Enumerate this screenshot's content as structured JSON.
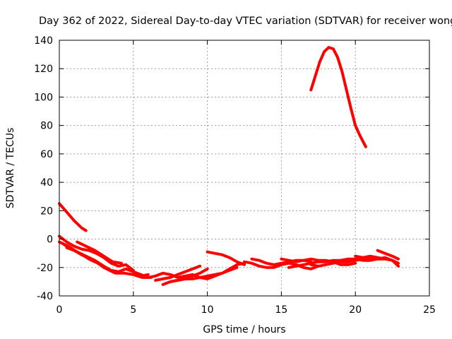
{
  "chart_data": {
    "type": "line",
    "title": "Day 362 of 2022, Sidereal Day-to-day VTEC variation (SDTVAR) for receiver wong",
    "xlabel": "GPS time / hours",
    "ylabel": "SDTVAR / TECUs",
    "xlim": [
      0,
      25
    ],
    "ylim": [
      -40,
      140
    ],
    "xticks": [
      0,
      5,
      10,
      15,
      20,
      25
    ],
    "yticks": [
      -40,
      -20,
      0,
      20,
      40,
      60,
      80,
      100,
      120,
      140
    ],
    "grid": true,
    "color": "#ff0000",
    "series": [
      {
        "name": "s1",
        "x": [
          0.0,
          0.5,
          1.0,
          1.5,
          1.8
        ],
        "y": [
          25,
          19,
          13,
          8,
          6
        ]
      },
      {
        "name": "s2",
        "x": [
          0.0,
          0.5,
          1.0,
          1.5,
          2.0,
          2.5,
          3.0,
          3.5,
          4.0,
          4.5,
          5.0
        ],
        "y": [
          2,
          -2,
          -5,
          -7,
          -8,
          -10,
          -13,
          -17,
          -19,
          -18,
          -22
        ]
      },
      {
        "name": "s3",
        "x": [
          0.0,
          0.6,
          1.2,
          1.8,
          2.4,
          3.0,
          3.5,
          4.0,
          4.5,
          5.0,
          5.5,
          6.0
        ],
        "y": [
          -2,
          -5,
          -9,
          -12,
          -15,
          -19,
          -22,
          -23,
          -21,
          -23,
          -26,
          -25
        ]
      },
      {
        "name": "s4",
        "x": [
          0.2,
          0.8,
          1.4,
          2.0,
          2.6,
          3.2,
          3.8,
          4.4,
          5.0,
          5.6,
          6.2
        ],
        "y": [
          -3,
          -7,
          -10,
          -14,
          -17,
          -21,
          -24,
          -24,
          -25,
          -27,
          -27
        ]
      },
      {
        "name": "s5",
        "x": [
          0.5,
          1.0,
          1.5,
          2.0,
          2.5,
          3.0,
          3.5,
          4.0
        ],
        "y": [
          -6,
          -8,
          -11,
          -13,
          -16,
          -20,
          -22,
          -23
        ]
      },
      {
        "name": "s6",
        "x": [
          1.2,
          1.8,
          2.4,
          3.0,
          3.6,
          4.2
        ],
        "y": [
          -2,
          -5,
          -8,
          -12,
          -16,
          -17
        ]
      },
      {
        "name": "s7",
        "x": [
          5.0,
          5.5,
          6.0,
          6.5,
          7.0,
          7.5,
          8.0,
          8.5,
          9.0,
          9.5,
          10.0,
          10.5,
          11.0,
          11.5,
          12.0
        ],
        "y": [
          -23,
          -25,
          -27,
          -26,
          -24,
          -25,
          -27,
          -26,
          -25,
          -27,
          -26,
          -25,
          -24,
          -22,
          -20
        ]
      },
      {
        "name": "s8",
        "x": [
          7.0,
          7.5,
          8.0,
          8.5,
          9.0,
          9.5,
          10.0
        ],
        "y": [
          -32,
          -30,
          -29,
          -28,
          -26,
          -24,
          -21
        ]
      },
      {
        "name": "s9",
        "x": [
          6.5,
          7.0,
          7.5,
          8.0,
          8.5,
          9.0,
          9.5
        ],
        "y": [
          -29,
          -28,
          -27,
          -25,
          -23,
          -21,
          -19
        ]
      },
      {
        "name": "s10",
        "x": [
          7.5,
          8.0,
          8.5,
          9.0,
          9.5,
          10.0,
          10.5,
          11.0,
          11.5,
          12.0,
          12.5
        ],
        "y": [
          -30,
          -29,
          -28,
          -28,
          -27,
          -28,
          -26,
          -24,
          -21,
          -18,
          -17
        ]
      },
      {
        "name": "s11",
        "x": [
          10.0,
          10.5,
          11.0,
          11.5,
          12.0,
          12.5
        ],
        "y": [
          -9,
          -10,
          -11,
          -13,
          -16,
          -18
        ]
      },
      {
        "name": "s12",
        "x": [
          12.5,
          13.0,
          13.5,
          14.0,
          14.5,
          15.0,
          15.5,
          16.0,
          16.5,
          17.0,
          17.5
        ],
        "y": [
          -16,
          -17,
          -19,
          -20,
          -20,
          -18,
          -17,
          -18,
          -20,
          -21,
          -19
        ]
      },
      {
        "name": "s13",
        "x": [
          13.0,
          13.5,
          14.0,
          14.5,
          15.0,
          15.5,
          16.0,
          16.5,
          17.0
        ],
        "y": [
          -14,
          -15,
          -17,
          -18,
          -17,
          -16,
          -15,
          -15,
          -16
        ]
      },
      {
        "name": "s14",
        "x": [
          15.5,
          16.0,
          16.5,
          17.0,
          17.5,
          18.0,
          18.5,
          19.0,
          19.5,
          20.0,
          20.5,
          21.0,
          21.5,
          22.0,
          22.5,
          22.9
        ],
        "y": [
          -20,
          -19,
          -18,
          -17,
          -16,
          -16,
          -15,
          -15,
          -14,
          -14,
          -15,
          -15,
          -14,
          -14,
          -15,
          -17
        ]
      },
      {
        "name": "s15",
        "x": [
          15.0,
          15.5,
          16.0,
          16.5,
          17.0,
          17.5,
          18.0,
          18.5,
          19.0,
          19.5,
          20.0
        ],
        "y": [
          -14,
          -15,
          -16,
          -15,
          -14,
          -15,
          -15,
          -16,
          -18,
          -18,
          -17
        ]
      },
      {
        "name": "s16",
        "x": [
          17.0,
          17.5,
          18.0,
          18.5,
          19.0,
          19.5,
          20.0,
          20.5,
          21.0,
          21.5,
          22.0,
          22.5,
          22.9
        ],
        "y": [
          -18,
          -19,
          -18,
          -17,
          -16,
          -16,
          -15,
          -14,
          -13,
          -14,
          -13,
          -15,
          -19
        ]
      },
      {
        "name": "s17",
        "x": [
          21.5,
          22.0,
          22.5,
          22.9
        ],
        "y": [
          -8,
          -10,
          -12,
          -14
        ]
      },
      {
        "name": "s18",
        "x": [
          20.0,
          20.5,
          21.0,
          21.5,
          22.0
        ],
        "y": [
          -12,
          -13,
          -12,
          -13,
          -14
        ]
      },
      {
        "name": "s19",
        "x": [
          17.0,
          17.3,
          17.6,
          17.9,
          18.2,
          18.5,
          18.8,
          19.1,
          19.4,
          19.7,
          20.0,
          20.3,
          20.7
        ],
        "y": [
          105,
          115,
          125,
          132,
          135,
          134,
          128,
          118,
          105,
          92,
          80,
          73,
          65
        ]
      }
    ]
  }
}
